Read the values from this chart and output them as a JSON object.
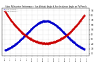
{
  "title": "Solar PV/Inverter Performance  Sun Altitude Angle & Sun Incidence Angle on PV Panels",
  "bg_color": "#ffffff",
  "grid_color": "#aaaaaa",
  "ylim": [
    -5,
    95
  ],
  "xlim": [
    4.5,
    20.5
  ],
  "sun_altitude": {
    "color": "#0000cc",
    "label": "Sun Alt 1min"
  },
  "sun_incidence": {
    "color": "#cc0000",
    "label": "Sun Inc 1min"
  },
  "yticks": [
    0,
    10,
    20,
    30,
    40,
    50,
    60,
    70,
    80,
    90
  ],
  "ytick_labels": [
    "0",
    "10",
    "20",
    "30",
    "40",
    "50",
    "60",
    "70",
    "80",
    "90"
  ],
  "xtick_positions": [
    5,
    6,
    7,
    8,
    9,
    10,
    11,
    12,
    13,
    14,
    15,
    16,
    17,
    18,
    19,
    20
  ],
  "xtick_labels": [
    "5:00",
    "6:00",
    "7:00",
    "8:00",
    "9:00",
    "10:00",
    "11:00",
    "12:00",
    "13:00",
    "14:00",
    "15:00",
    "16:00",
    "17:00",
    "18:00",
    "19:00",
    "20:00"
  ]
}
